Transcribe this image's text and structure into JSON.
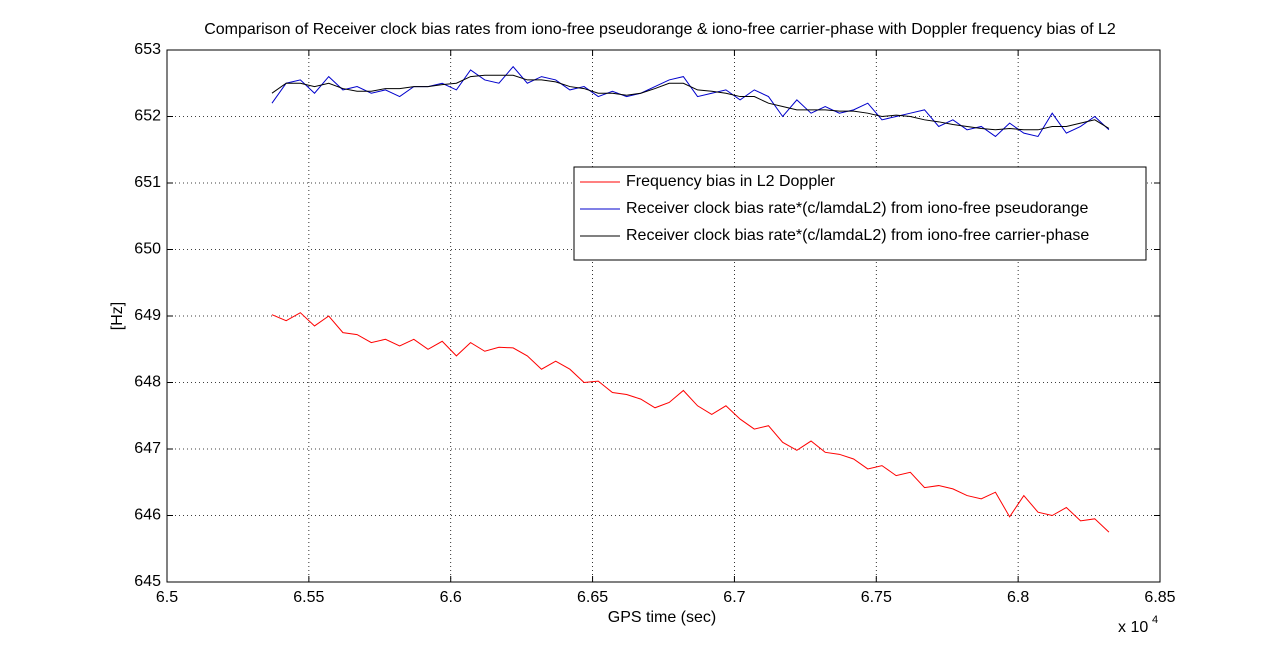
{
  "chart_data": {
    "type": "line",
    "title": "Comparison of Receiver clock bias rates from iono-free pseudorange & iono-free carrier-phase with Doppler frequency bias of L2",
    "x_label": "GPS time (sec)",
    "x_multiplier": "x 10",
    "x_multiplier_exponent": "4",
    "y_label": "[Hz]",
    "xlim": [
      6.5,
      6.85
    ],
    "xticks": [
      6.5,
      6.55,
      6.6,
      6.65,
      6.7,
      6.75,
      6.8,
      6.85
    ],
    "ylim": [
      645,
      653
    ],
    "yticks": [
      645,
      646,
      647,
      648,
      649,
      650,
      651,
      652,
      653
    ],
    "grid": true,
    "legend": "upper right",
    "x": [
      6.537,
      6.542,
      6.547,
      6.552,
      6.557,
      6.562,
      6.567,
      6.572,
      6.577,
      6.582,
      6.587,
      6.592,
      6.597,
      6.602,
      6.607,
      6.612,
      6.617,
      6.622,
      6.627,
      6.632,
      6.637,
      6.642,
      6.647,
      6.652,
      6.657,
      6.662,
      6.667,
      6.672,
      6.677,
      6.682,
      6.687,
      6.692,
      6.697,
      6.702,
      6.707,
      6.712,
      6.717,
      6.722,
      6.727,
      6.732,
      6.737,
      6.742,
      6.747,
      6.752,
      6.757,
      6.762,
      6.767,
      6.772,
      6.777,
      6.782,
      6.787,
      6.792,
      6.797,
      6.802,
      6.807,
      6.812,
      6.817,
      6.822,
      6.827,
      6.832
    ],
    "series": [
      {
        "name": "Frequency bias in L2 Doppler",
        "color": "#ff0000",
        "values": [
          649.02,
          648.93,
          649.05,
          648.85,
          649.0,
          648.75,
          648.72,
          648.6,
          648.65,
          648.55,
          648.65,
          648.5,
          648.62,
          648.4,
          648.6,
          648.47,
          648.53,
          648.52,
          648.4,
          648.2,
          648.32,
          648.2,
          648.0,
          648.02,
          647.85,
          647.82,
          647.75,
          647.62,
          647.7,
          647.88,
          647.65,
          647.52,
          647.65,
          647.45,
          647.3,
          647.35,
          647.1,
          646.98,
          647.12,
          646.95,
          646.92,
          646.85,
          646.7,
          646.75,
          646.6,
          646.65,
          646.42,
          646.45,
          646.4,
          646.3,
          646.25,
          646.35,
          645.98,
          646.3,
          646.05,
          646.0,
          646.12,
          645.92,
          645.95,
          645.75
        ]
      },
      {
        "name": "Receiver clock bias rate*(c/lamdaL2) from iono-free pseudorange",
        "color": "#0000cc",
        "values": [
          652.2,
          652.5,
          652.55,
          652.35,
          652.6,
          652.4,
          652.45,
          652.35,
          652.4,
          652.3,
          652.45,
          652.45,
          652.5,
          652.4,
          652.7,
          652.55,
          652.5,
          652.75,
          652.5,
          652.6,
          652.55,
          652.4,
          652.45,
          652.3,
          652.38,
          652.3,
          652.35,
          652.45,
          652.55,
          652.6,
          652.3,
          652.35,
          652.4,
          652.25,
          652.4,
          652.3,
          652.0,
          652.25,
          652.05,
          652.15,
          652.05,
          652.1,
          652.2,
          651.95,
          652.0,
          652.05,
          652.1,
          651.85,
          651.95,
          651.8,
          651.85,
          651.7,
          651.9,
          651.75,
          651.7,
          652.05,
          651.75,
          651.85,
          652.0,
          651.8
        ]
      },
      {
        "name": "Receiver clock bias rate*(c/lamdaL2) from iono-free carrier-phase",
        "color": "#000000",
        "values": [
          652.35,
          652.5,
          652.5,
          652.45,
          652.5,
          652.42,
          652.38,
          652.38,
          652.42,
          652.42,
          652.45,
          652.45,
          652.48,
          652.5,
          652.6,
          652.62,
          652.62,
          652.62,
          652.55,
          652.55,
          652.52,
          652.45,
          652.42,
          652.35,
          652.35,
          652.32,
          652.35,
          652.42,
          652.5,
          652.5,
          652.4,
          652.38,
          652.35,
          652.3,
          652.3,
          652.2,
          652.15,
          652.1,
          652.1,
          652.1,
          652.08,
          652.08,
          652.05,
          652.0,
          652.02,
          652.0,
          651.95,
          651.92,
          651.88,
          651.85,
          651.82,
          651.8,
          651.82,
          651.8,
          651.8,
          651.85,
          651.85,
          651.9,
          651.95,
          651.82
        ]
      }
    ]
  }
}
